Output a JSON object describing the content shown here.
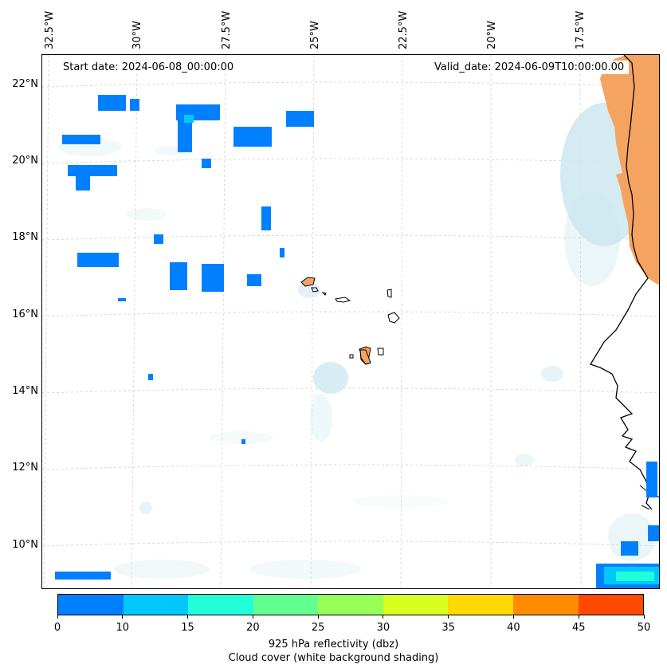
{
  "header": {
    "start_date": "Start date: 2024-06-08_00:00:00",
    "valid_date": "Valid_date: 2024-06-09T10:00:00.00"
  },
  "axes": {
    "lon_labels": [
      "32.5°W",
      "30°W",
      "27.5°W",
      "25°W",
      "22.5°W",
      "20°W",
      "17.5°W"
    ],
    "lat_labels": [
      "22°N",
      "20°N",
      "18°N",
      "16°N",
      "14°N",
      "12°N",
      "10°N"
    ]
  },
  "colorbar": {
    "ticks": [
      "0",
      "10",
      "15",
      "20",
      "25",
      "30",
      "35",
      "40",
      "45",
      "50"
    ],
    "colors": [
      "#0080ff",
      "#00c8ff",
      "#20ffd8",
      "#60ff90",
      "#98ff58",
      "#d8ff20",
      "#ffd800",
      "#ff8c00",
      "#ff4800"
    ],
    "label": "925 hPa reflectivity (dbz)",
    "sublabel": "Cloud cover (white background shading)"
  },
  "map_colors": {
    "land_orange": "#f4a460",
    "cloud_shade": "#cde8f0",
    "reflectivity_low": "#0080ff",
    "reflectivity_mid": "#00c8ff",
    "reflectivity_high": "#20ffd8"
  }
}
